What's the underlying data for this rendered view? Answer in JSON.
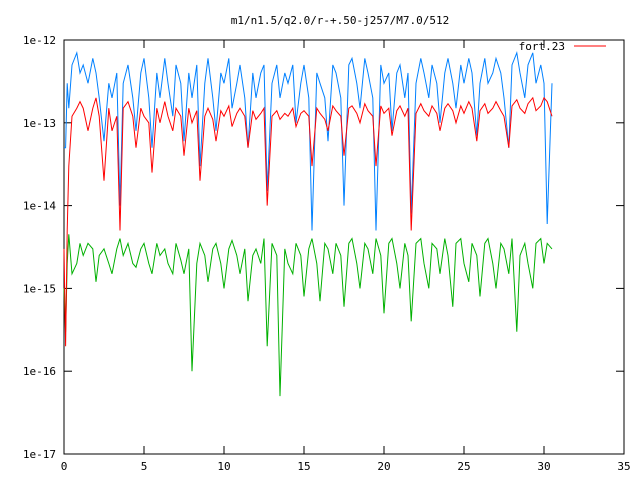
{
  "chart_data": {
    "type": "line",
    "title": "m1/n1.5/q2.0/r-+.50-j257/M7.0/512",
    "xlabel": "",
    "ylabel": "",
    "xlim": [
      0,
      35
    ],
    "ylim": [
      1e-17,
      1e-12
    ],
    "yscale": "log",
    "grid": false,
    "legend_position": "top-right",
    "x_ticks": [
      0,
      5,
      10,
      15,
      20,
      25,
      30,
      35
    ],
    "x_tick_labels": [
      "0",
      "5",
      "10",
      "15",
      "20",
      "25",
      "30",
      "35"
    ],
    "y_ticks": [
      1e-17,
      1e-16,
      1e-15,
      1e-14,
      1e-13,
      1e-12
    ],
    "y_tick_labels": [
      "1e-17",
      "1e-16",
      "1e-15",
      "1e-14",
      "1e-13",
      "1e-12"
    ],
    "series": [
      {
        "name": "fort.23",
        "color": "#ff0000",
        "x": [
          0.0,
          0.1,
          0.2,
          0.3,
          0.5,
          0.8,
          1.0,
          1.2,
          1.5,
          1.8,
          2.0,
          2.2,
          2.5,
          2.8,
          3.0,
          3.3,
          3.5,
          3.7,
          4.0,
          4.3,
          4.5,
          4.8,
          5.0,
          5.3,
          5.5,
          5.8,
          6.0,
          6.3,
          6.5,
          6.8,
          7.0,
          7.3,
          7.5,
          7.8,
          8.0,
          8.3,
          8.5,
          8.8,
          9.0,
          9.3,
          9.5,
          9.8,
          10.0,
          10.3,
          10.5,
          10.8,
          11.0,
          11.3,
          11.5,
          11.8,
          12.0,
          12.3,
          12.5,
          12.7,
          13.0,
          13.3,
          13.5,
          13.8,
          14.0,
          14.3,
          14.5,
          14.8,
          15.0,
          15.3,
          15.5,
          15.8,
          16.0,
          16.3,
          16.5,
          16.8,
          17.0,
          17.3,
          17.5,
          17.8,
          18.0,
          18.3,
          18.5,
          18.8,
          19.0,
          19.3,
          19.5,
          19.8,
          20.0,
          20.3,
          20.5,
          20.8,
          21.0,
          21.3,
          21.5,
          21.7,
          22.0,
          22.3,
          22.5,
          22.8,
          23.0,
          23.3,
          23.5,
          23.8,
          24.0,
          24.3,
          24.5,
          24.8,
          25.0,
          25.3,
          25.5,
          25.8,
          26.0,
          26.3,
          26.5,
          26.8,
          27.0,
          27.3,
          27.5,
          27.8,
          28.0,
          28.3,
          28.5,
          28.8,
          29.0,
          29.3,
          29.5,
          29.8,
          30.0,
          30.2,
          30.5
        ],
        "values": [
          3e-15,
          2e-16,
          5e-15,
          3e-14,
          1.2e-13,
          1.5e-13,
          1.8e-13,
          1.5e-13,
          8e-14,
          1.5e-13,
          2e-13,
          1.2e-13,
          2e-14,
          1.5e-13,
          8e-14,
          1.2e-13,
          5e-15,
          1.5e-13,
          1.8e-13,
          1.2e-13,
          5e-14,
          1.5e-13,
          1.2e-13,
          1e-13,
          2.5e-14,
          1.5e-13,
          1e-13,
          1.8e-13,
          1.2e-13,
          8e-14,
          1.5e-13,
          1.2e-13,
          4e-14,
          1.5e-13,
          1e-13,
          1.4e-13,
          2e-14,
          1.2e-13,
          1.5e-13,
          1.1e-13,
          6e-14,
          1.4e-13,
          1.2e-13,
          1.6e-13,
          9e-14,
          1.3e-13,
          1.5e-13,
          1.2e-13,
          5e-14,
          1.4e-13,
          1.1e-13,
          1.3e-13,
          1.5e-13,
          1e-14,
          1.2e-13,
          1.4e-13,
          1.1e-13,
          1.3e-13,
          1.2e-13,
          1.5e-13,
          9e-14,
          1.3e-13,
          1.4e-13,
          1.2e-13,
          3e-14,
          1.5e-13,
          1.3e-13,
          1.1e-13,
          8e-14,
          1.6e-13,
          1.4e-13,
          1.2e-13,
          4e-14,
          1.5e-13,
          1.6e-13,
          1.3e-13,
          1e-13,
          1.7e-13,
          1.4e-13,
          1.2e-13,
          3e-14,
          1.6e-13,
          1.3e-13,
          1.5e-13,
          7e-14,
          1.4e-13,
          1.6e-13,
          1.2e-13,
          1.5e-13,
          5e-15,
          1.3e-13,
          1.7e-13,
          1.4e-13,
          1.2e-13,
          1.6e-13,
          1.3e-13,
          8e-14,
          1.5e-13,
          1.7e-13,
          1.4e-13,
          1e-13,
          1.6e-13,
          1.3e-13,
          1.8e-13,
          1.5e-13,
          6e-14,
          1.4e-13,
          1.7e-13,
          1.3e-13,
          1.5e-13,
          1.8e-13,
          1.4e-13,
          1.2e-13,
          5e-14,
          1.6e-13,
          1.9e-13,
          1.5e-13,
          1.3e-13,
          1.7e-13,
          2e-13,
          1.4e-13,
          1.6e-13,
          2e-13,
          1.8e-13,
          1.2e-13
        ]
      },
      {
        "name": "",
        "color": "#0080ff",
        "x": [
          0.0,
          0.1,
          0.2,
          0.3,
          0.5,
          0.8,
          1.0,
          1.2,
          1.5,
          1.8,
          2.0,
          2.2,
          2.5,
          2.8,
          3.0,
          3.3,
          3.5,
          3.7,
          4.0,
          4.3,
          4.5,
          4.8,
          5.0,
          5.3,
          5.5,
          5.8,
          6.0,
          6.3,
          6.5,
          6.8,
          7.0,
          7.3,
          7.5,
          7.8,
          8.0,
          8.3,
          8.5,
          8.8,
          9.0,
          9.3,
          9.5,
          9.8,
          10.0,
          10.3,
          10.5,
          10.8,
          11.0,
          11.3,
          11.5,
          11.8,
          12.0,
          12.3,
          12.5,
          12.7,
          13.0,
          13.3,
          13.5,
          13.8,
          14.0,
          14.3,
          14.5,
          14.8,
          15.0,
          15.3,
          15.5,
          15.8,
          16.0,
          16.3,
          16.5,
          16.8,
          17.0,
          17.3,
          17.5,
          17.8,
          18.0,
          18.3,
          18.5,
          18.8,
          19.0,
          19.3,
          19.5,
          19.8,
          20.0,
          20.3,
          20.5,
          20.8,
          21.0,
          21.3,
          21.5,
          21.7,
          22.0,
          22.3,
          22.5,
          22.8,
          23.0,
          23.3,
          23.5,
          23.8,
          24.0,
          24.3,
          24.5,
          24.8,
          25.0,
          25.3,
          25.5,
          25.8,
          26.0,
          26.3,
          26.5,
          26.8,
          27.0,
          27.3,
          27.5,
          27.8,
          28.0,
          28.3,
          28.5,
          28.8,
          29.0,
          29.3,
          29.5,
          29.8,
          30.0,
          30.2,
          30.5
        ],
        "values": [
          5e-14,
          5e-14,
          3e-13,
          1.5e-13,
          5e-13,
          7e-13,
          4e-13,
          5e-13,
          3e-13,
          6e-13,
          4e-13,
          2e-13,
          6e-14,
          3e-13,
          2e-13,
          4e-13,
          1e-14,
          3e-13,
          5e-13,
          2e-13,
          8e-14,
          4e-13,
          6e-13,
          2e-13,
          5e-14,
          4e-13,
          2e-13,
          6e-13,
          3e-13,
          1.2e-13,
          5e-13,
          3e-13,
          6e-14,
          4e-13,
          2e-13,
          5e-13,
          3e-14,
          3e-13,
          6e-13,
          2e-13,
          8e-14,
          4e-13,
          3e-13,
          6e-13,
          1.5e-13,
          3e-13,
          5e-13,
          2e-13,
          5e-14,
          4e-13,
          2e-13,
          4e-13,
          5e-13,
          1.5e-14,
          3e-13,
          5e-13,
          2e-13,
          4e-13,
          3e-13,
          5e-13,
          1e-13,
          3e-13,
          5e-13,
          2e-13,
          5e-15,
          4e-13,
          3e-13,
          2e-13,
          6e-14,
          5e-13,
          4e-13,
          2e-13,
          1e-14,
          5e-13,
          6e-13,
          3e-13,
          1.5e-13,
          6e-13,
          4e-13,
          2e-13,
          5e-15,
          5e-13,
          3e-13,
          4e-13,
          8e-14,
          4e-13,
          5e-13,
          2e-13,
          4e-13,
          8e-15,
          3e-13,
          6e-13,
          4e-13,
          2e-13,
          5e-13,
          3e-13,
          1e-13,
          4e-13,
          6e-13,
          3e-13,
          1.5e-13,
          5e-13,
          3e-13,
          6e-13,
          4e-13,
          7e-14,
          3e-13,
          6e-13,
          3e-13,
          4e-13,
          6e-13,
          4e-13,
          2e-13,
          5e-14,
          5e-13,
          7e-13,
          4e-13,
          2e-13,
          5e-13,
          7e-13,
          3e-13,
          5e-13,
          3e-13,
          6e-15,
          3e-13
        ]
      },
      {
        "name": "",
        "color": "#00b000",
        "x": [
          0.0,
          0.1,
          0.2,
          0.3,
          0.5,
          0.8,
          1.0,
          1.2,
          1.5,
          1.8,
          2.0,
          2.2,
          2.5,
          2.8,
          3.0,
          3.3,
          3.5,
          3.7,
          4.0,
          4.3,
          4.5,
          4.8,
          5.0,
          5.3,
          5.5,
          5.8,
          6.0,
          6.3,
          6.5,
          6.8,
          7.0,
          7.3,
          7.5,
          7.8,
          8.0,
          8.3,
          8.5,
          8.8,
          9.0,
          9.3,
          9.5,
          9.8,
          10.0,
          10.3,
          10.5,
          10.8,
          11.0,
          11.3,
          11.5,
          11.8,
          12.0,
          12.3,
          12.5,
          12.7,
          13.0,
          13.3,
          13.5,
          13.8,
          14.0,
          14.3,
          14.5,
          14.8,
          15.0,
          15.3,
          15.5,
          15.8,
          16.0,
          16.3,
          16.5,
          16.8,
          17.0,
          17.3,
          17.5,
          17.8,
          18.0,
          18.3,
          18.5,
          18.8,
          19.0,
          19.3,
          19.5,
          19.8,
          20.0,
          20.3,
          20.5,
          20.8,
          21.0,
          21.3,
          21.5,
          21.7,
          22.0,
          22.3,
          22.5,
          22.8,
          23.0,
          23.3,
          23.5,
          23.8,
          24.0,
          24.3,
          24.5,
          24.8,
          25.0,
          25.3,
          25.5,
          25.8,
          26.0,
          26.3,
          26.5,
          26.8,
          27.0,
          27.3,
          27.5,
          27.8,
          28.0,
          28.3,
          28.5,
          28.8,
          29.0,
          29.3,
          29.5,
          29.8,
          30.0,
          30.2,
          30.5
        ],
        "values": [
          1e-15,
          3e-16,
          2e-15,
          4.5e-15,
          1.5e-15,
          2e-15,
          3.5e-15,
          2.5e-15,
          3.5e-15,
          3e-15,
          1.2e-15,
          2.5e-15,
          3e-15,
          2e-15,
          1.5e-15,
          3e-15,
          4e-15,
          2.5e-15,
          3.5e-15,
          2e-15,
          1.8e-15,
          3e-15,
          3.5e-15,
          2e-15,
          1.5e-15,
          3.5e-15,
          2.5e-15,
          3e-15,
          2e-15,
          1.5e-15,
          3.5e-15,
          2.2e-15,
          1.5e-15,
          3e-15,
          1e-16,
          2e-15,
          3.5e-15,
          2.5e-15,
          1.2e-15,
          3e-15,
          3.5e-15,
          2e-15,
          1e-15,
          3e-15,
          3.8e-15,
          2.5e-15,
          1.5e-15,
          3e-15,
          7e-16,
          2.5e-15,
          3e-15,
          2e-15,
          4e-15,
          2e-16,
          3.5e-15,
          2.5e-15,
          5e-17,
          3e-15,
          2e-15,
          1.5e-15,
          3.5e-15,
          2.5e-15,
          8e-16,
          3e-15,
          4e-15,
          2e-15,
          7e-16,
          3.5e-15,
          3e-15,
          1.5e-15,
          3.5e-15,
          2.5e-15,
          6e-16,
          3.5e-15,
          4e-15,
          2e-15,
          1e-15,
          3.5e-15,
          3e-15,
          1.5e-15,
          4e-15,
          2.5e-15,
          5e-16,
          3.5e-15,
          4e-15,
          2e-15,
          1e-15,
          3.5e-15,
          2.5e-15,
          4e-16,
          3.5e-15,
          4e-15,
          2e-15,
          1e-15,
          3.5e-15,
          3e-15,
          1.5e-15,
          4e-15,
          2.5e-15,
          6e-16,
          3.5e-15,
          4e-15,
          2e-15,
          1.2e-15,
          3.5e-15,
          2.5e-15,
          8e-16,
          3.5e-15,
          4e-15,
          2e-15,
          1e-15,
          3.5e-15,
          3e-15,
          1.5e-15,
          4e-15,
          3e-16,
          2.5e-15,
          3.5e-15,
          2e-15,
          1e-15,
          3.5e-15,
          4e-15,
          2e-15,
          3.5e-15,
          3e-15
        ]
      }
    ]
  }
}
